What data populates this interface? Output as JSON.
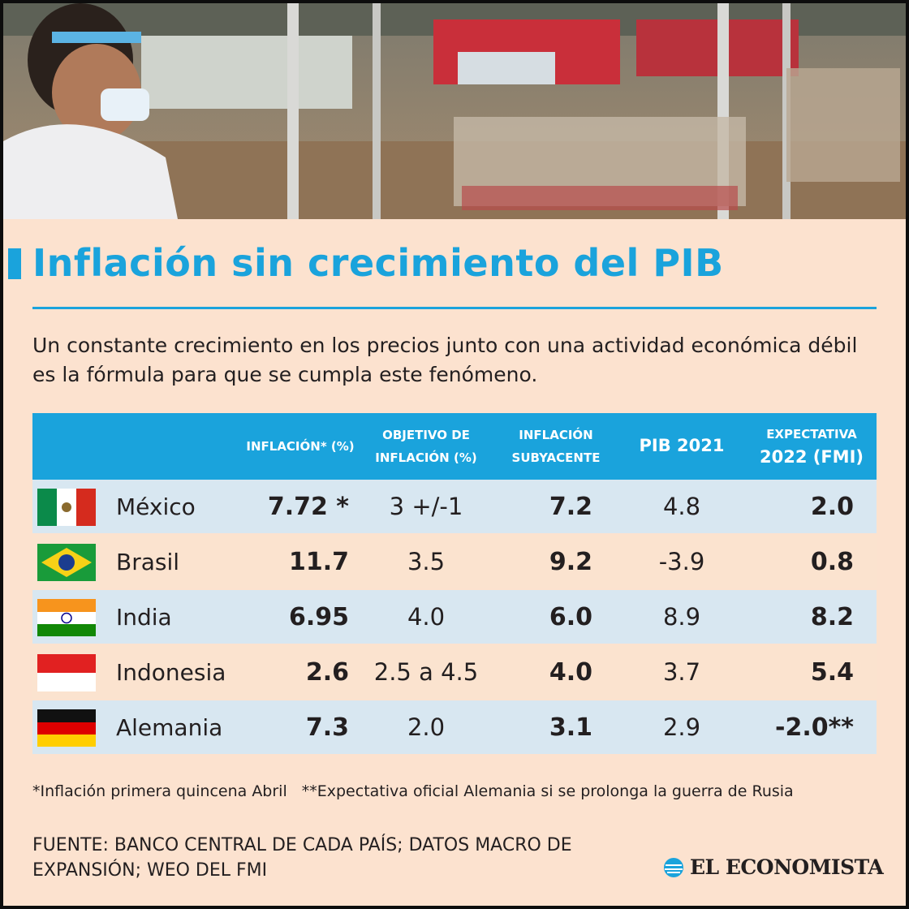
{
  "header": {
    "title": "Inflación sin crecimiento del PIB",
    "intro": "Un constante crecimiento en los precios junto con una actividad económica débil es la fórmula para que se cumpla este fenómeno."
  },
  "table": {
    "headers": {
      "inflation": [
        "INFLACIÓN* (%)"
      ],
      "target": [
        "OBJETIVO DE",
        "INFLACIÓN (%)"
      ],
      "core": [
        "INFLACIÓN",
        "SUBYACENTE"
      ],
      "gdp": [
        "PIB 2021"
      ],
      "outlook": [
        "EXPECTATIVA",
        "2022 (FMI)"
      ]
    },
    "rows": [
      {
        "country": "México",
        "flag": "mexico",
        "inflation": "7.72 *",
        "target": "3 +/-1",
        "core": "7.2",
        "gdp": "4.8",
        "outlook": "2.0"
      },
      {
        "country": "Brasil",
        "flag": "brazil",
        "inflation": "11.7",
        "target": "3.5",
        "core": "9.2",
        "gdp": "-3.9",
        "outlook": "0.8"
      },
      {
        "country": "India",
        "flag": "india",
        "inflation": "6.95",
        "target": "4.0",
        "core": "6.0",
        "gdp": "8.9",
        "outlook": "8.2"
      },
      {
        "country": "Indonesia",
        "flag": "indonesia",
        "inflation": "2.6",
        "target": "2.5 a 4.5",
        "core": "4.0",
        "gdp": "3.7",
        "outlook": "5.4"
      },
      {
        "country": "Alemania",
        "flag": "germany",
        "inflation": "7.3",
        "target": "2.0",
        "core": "3.1",
        "gdp": "2.9",
        "outlook": "-2.0**"
      }
    ]
  },
  "notes": {
    "note1": "*Inflación primera quincena Abril",
    "note2": "**Expectativa oficial Alemania si se prolonga la guerra de Rusia"
  },
  "source": "FUENTE: BANCO CENTRAL DE CADA PAÍS; DATOS MACRO DE EXPANSIÓN; WEO DEL FMI",
  "logo": "EL ECONOMISTA",
  "colors": {
    "accent": "#1aa3dc",
    "background": "#fce2cf",
    "row_alt": "#d8e7f1",
    "text": "#231f20"
  },
  "chart_data": {
    "type": "table",
    "title": "Inflación sin crecimiento del PIB",
    "columns": [
      "",
      "INFLACIÓN* (%)",
      "OBJETIVO DE INFLACIÓN (%)",
      "INFLACIÓN SUBYACENTE",
      "PIB 2021",
      "EXPECTATIVA 2022 (FMI)"
    ],
    "rows": [
      [
        "México",
        "7.72 *",
        "3 +/-1",
        "7.2",
        "4.8",
        "2.0"
      ],
      [
        "Brasil",
        "11.7",
        "3.5",
        "9.2",
        "-3.9",
        "0.8"
      ],
      [
        "India",
        "6.95",
        "4.0",
        "6.0",
        "8.9",
        "8.2"
      ],
      [
        "Indonesia",
        "2.6",
        "2.5 a 4.5",
        "4.0",
        "3.7",
        "5.4"
      ],
      [
        "Alemania",
        "7.3",
        "2.0",
        "3.1",
        "2.9",
        "-2.0**"
      ]
    ]
  }
}
